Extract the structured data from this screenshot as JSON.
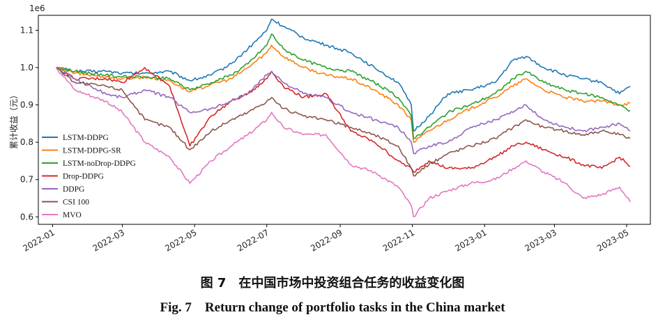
{
  "chart_data": {
    "type": "line",
    "offset_label": "1e6",
    "ylabel": "累计收益（元）",
    "xlabel": "",
    "x_ticks": [
      "2022-01",
      "2022-03",
      "2022-05",
      "2022-07",
      "2022-09",
      "2022-11",
      "2023-01",
      "2023-03",
      "2023-05"
    ],
    "y_ticks": [
      "0.6",
      "0.7",
      "0.8",
      "0.9",
      "1.0",
      "1.1"
    ],
    "ylim": [
      0.58,
      1.14
    ],
    "xlim": [
      "2021-12-20",
      "2023-05-21"
    ],
    "legend_position": "center-left",
    "grid": false,
    "series": [
      {
        "name": "LSTM-DDPG",
        "color": "#1f77b4",
        "points": [
          [
            "2022-01-04",
            1.0
          ],
          [
            "2022-01-20",
            0.99
          ],
          [
            "2022-02-15",
            0.99
          ],
          [
            "2022-03-01",
            0.985
          ],
          [
            "2022-03-20",
            0.985
          ],
          [
            "2022-04-10",
            0.99
          ],
          [
            "2022-04-27",
            0.965
          ],
          [
            "2022-05-15",
            0.98
          ],
          [
            "2022-06-01",
            1.01
          ],
          [
            "2022-06-15",
            1.05
          ],
          [
            "2022-07-01",
            1.1
          ],
          [
            "2022-07-05",
            1.13
          ],
          [
            "2022-07-15",
            1.11
          ],
          [
            "2022-08-01",
            1.08
          ],
          [
            "2022-08-20",
            1.06
          ],
          [
            "2022-09-10",
            1.04
          ],
          [
            "2022-09-30",
            1.0
          ],
          [
            "2022-10-20",
            0.96
          ],
          [
            "2022-10-31",
            0.9
          ],
          [
            "2022-11-02",
            0.83
          ],
          [
            "2022-11-15",
            0.87
          ],
          [
            "2022-12-01",
            0.93
          ],
          [
            "2022-12-20",
            0.94
          ],
          [
            "2023-01-10",
            0.96
          ],
          [
            "2023-01-25",
            1.02
          ],
          [
            "2023-02-05",
            1.03
          ],
          [
            "2023-02-20",
            1.0
          ],
          [
            "2023-03-10",
            0.98
          ],
          [
            "2023-03-25",
            0.97
          ],
          [
            "2023-04-10",
            0.96
          ],
          [
            "2023-04-25",
            0.93
          ],
          [
            "2023-05-04",
            0.95
          ]
        ]
      },
      {
        "name": "LSTM-DDPG-SR",
        "color": "#ff7f0e",
        "points": [
          [
            "2022-01-04",
            1.0
          ],
          [
            "2022-01-20",
            0.985
          ],
          [
            "2022-02-15",
            0.975
          ],
          [
            "2022-03-01",
            0.97
          ],
          [
            "2022-03-20",
            0.975
          ],
          [
            "2022-04-10",
            0.965
          ],
          [
            "2022-04-27",
            0.935
          ],
          [
            "2022-05-15",
            0.955
          ],
          [
            "2022-06-01",
            0.97
          ],
          [
            "2022-06-15",
            1.0
          ],
          [
            "2022-07-01",
            1.04
          ],
          [
            "2022-07-05",
            1.06
          ],
          [
            "2022-07-15",
            1.03
          ],
          [
            "2022-08-01",
            1.0
          ],
          [
            "2022-08-20",
            0.98
          ],
          [
            "2022-09-10",
            0.97
          ],
          [
            "2022-09-30",
            0.94
          ],
          [
            "2022-10-20",
            0.9
          ],
          [
            "2022-10-31",
            0.86
          ],
          [
            "2022-11-02",
            0.8
          ],
          [
            "2022-11-15",
            0.83
          ],
          [
            "2022-12-01",
            0.86
          ],
          [
            "2022-12-20",
            0.89
          ],
          [
            "2023-01-10",
            0.92
          ],
          [
            "2023-01-25",
            0.95
          ],
          [
            "2023-02-05",
            0.97
          ],
          [
            "2023-02-20",
            0.94
          ],
          [
            "2023-03-10",
            0.92
          ],
          [
            "2023-03-25",
            0.91
          ],
          [
            "2023-04-10",
            0.91
          ],
          [
            "2023-04-25",
            0.9
          ],
          [
            "2023-05-04",
            0.905
          ]
        ]
      },
      {
        "name": "LSTM-noDrop-DDPG",
        "color": "#2ca02c",
        "points": [
          [
            "2022-01-04",
            1.0
          ],
          [
            "2022-01-20",
            0.99
          ],
          [
            "2022-02-15",
            0.98
          ],
          [
            "2022-03-01",
            0.975
          ],
          [
            "2022-03-20",
            0.975
          ],
          [
            "2022-04-10",
            0.97
          ],
          [
            "2022-04-27",
            0.94
          ],
          [
            "2022-05-15",
            0.96
          ],
          [
            "2022-06-01",
            0.98
          ],
          [
            "2022-06-15",
            1.01
          ],
          [
            "2022-07-01",
            1.06
          ],
          [
            "2022-07-05",
            1.09
          ],
          [
            "2022-07-15",
            1.05
          ],
          [
            "2022-08-01",
            1.02
          ],
          [
            "2022-08-20",
            1.0
          ],
          [
            "2022-09-10",
            0.99
          ],
          [
            "2022-09-30",
            0.96
          ],
          [
            "2022-10-20",
            0.92
          ],
          [
            "2022-10-31",
            0.87
          ],
          [
            "2022-11-02",
            0.81
          ],
          [
            "2022-11-15",
            0.84
          ],
          [
            "2022-12-01",
            0.88
          ],
          [
            "2022-12-20",
            0.9
          ],
          [
            "2023-01-10",
            0.93
          ],
          [
            "2023-01-25",
            0.97
          ],
          [
            "2023-02-05",
            0.99
          ],
          [
            "2023-02-20",
            0.96
          ],
          [
            "2023-03-10",
            0.94
          ],
          [
            "2023-03-25",
            0.93
          ],
          [
            "2023-04-10",
            0.92
          ],
          [
            "2023-04-25",
            0.9
          ],
          [
            "2023-05-04",
            0.885
          ]
        ]
      },
      {
        "name": "Drop-DDPG",
        "color": "#d62728",
        "points": [
          [
            "2022-01-04",
            1.0
          ],
          [
            "2022-01-20",
            0.97
          ],
          [
            "2022-02-15",
            0.97
          ],
          [
            "2022-03-01",
            0.96
          ],
          [
            "2022-03-20",
            1.0
          ],
          [
            "2022-04-10",
            0.95
          ],
          [
            "2022-04-27",
            0.79
          ],
          [
            "2022-05-15",
            0.87
          ],
          [
            "2022-06-01",
            0.91
          ],
          [
            "2022-06-15",
            0.93
          ],
          [
            "2022-07-01",
            0.97
          ],
          [
            "2022-07-05",
            0.99
          ],
          [
            "2022-07-15",
            0.95
          ],
          [
            "2022-08-01",
            0.92
          ],
          [
            "2022-08-20",
            0.93
          ],
          [
            "2022-09-10",
            0.83
          ],
          [
            "2022-09-30",
            0.8
          ],
          [
            "2022-10-20",
            0.75
          ],
          [
            "2022-10-31",
            0.73
          ],
          [
            "2022-11-02",
            0.72
          ],
          [
            "2022-11-15",
            0.75
          ],
          [
            "2022-12-01",
            0.73
          ],
          [
            "2022-12-20",
            0.73
          ],
          [
            "2023-01-10",
            0.76
          ],
          [
            "2023-01-25",
            0.79
          ],
          [
            "2023-02-05",
            0.8
          ],
          [
            "2023-02-20",
            0.78
          ],
          [
            "2023-03-10",
            0.76
          ],
          [
            "2023-03-25",
            0.74
          ],
          [
            "2023-04-10",
            0.73
          ],
          [
            "2023-04-25",
            0.76
          ],
          [
            "2023-05-04",
            0.735
          ]
        ]
      },
      {
        "name": "DDPG",
        "color": "#9467bd",
        "points": [
          [
            "2022-01-04",
            1.0
          ],
          [
            "2022-01-20",
            0.97
          ],
          [
            "2022-02-15",
            0.93
          ],
          [
            "2022-03-01",
            0.92
          ],
          [
            "2022-03-20",
            0.94
          ],
          [
            "2022-04-10",
            0.92
          ],
          [
            "2022-04-27",
            0.88
          ],
          [
            "2022-05-15",
            0.89
          ],
          [
            "2022-06-01",
            0.91
          ],
          [
            "2022-06-15",
            0.93
          ],
          [
            "2022-07-01",
            0.98
          ],
          [
            "2022-07-05",
            0.99
          ],
          [
            "2022-07-15",
            0.96
          ],
          [
            "2022-08-01",
            0.93
          ],
          [
            "2022-08-20",
            0.92
          ],
          [
            "2022-09-10",
            0.88
          ],
          [
            "2022-09-30",
            0.86
          ],
          [
            "2022-10-20",
            0.84
          ],
          [
            "2022-10-31",
            0.8
          ],
          [
            "2022-11-02",
            0.77
          ],
          [
            "2022-11-15",
            0.79
          ],
          [
            "2022-12-01",
            0.8
          ],
          [
            "2022-12-20",
            0.84
          ],
          [
            "2023-01-10",
            0.86
          ],
          [
            "2023-01-25",
            0.88
          ],
          [
            "2023-02-05",
            0.9
          ],
          [
            "2023-02-20",
            0.86
          ],
          [
            "2023-03-10",
            0.84
          ],
          [
            "2023-03-25",
            0.83
          ],
          [
            "2023-04-10",
            0.84
          ],
          [
            "2023-04-25",
            0.85
          ],
          [
            "2023-05-04",
            0.83
          ]
        ]
      },
      {
        "name": "CSI 100",
        "color": "#8c564b",
        "points": [
          [
            "2022-01-04",
            1.0
          ],
          [
            "2022-01-20",
            0.96
          ],
          [
            "2022-02-15",
            0.95
          ],
          [
            "2022-03-01",
            0.94
          ],
          [
            "2022-03-20",
            0.86
          ],
          [
            "2022-04-10",
            0.84
          ],
          [
            "2022-04-27",
            0.78
          ],
          [
            "2022-05-15",
            0.83
          ],
          [
            "2022-06-01",
            0.86
          ],
          [
            "2022-06-15",
            0.88
          ],
          [
            "2022-07-01",
            0.91
          ],
          [
            "2022-07-05",
            0.92
          ],
          [
            "2022-07-15",
            0.89
          ],
          [
            "2022-08-01",
            0.87
          ],
          [
            "2022-08-20",
            0.86
          ],
          [
            "2022-09-10",
            0.84
          ],
          [
            "2022-09-30",
            0.82
          ],
          [
            "2022-10-20",
            0.79
          ],
          [
            "2022-10-31",
            0.73
          ],
          [
            "2022-11-02",
            0.71
          ],
          [
            "2022-11-15",
            0.74
          ],
          [
            "2022-12-01",
            0.77
          ],
          [
            "2022-12-20",
            0.79
          ],
          [
            "2023-01-10",
            0.81
          ],
          [
            "2023-01-25",
            0.84
          ],
          [
            "2023-02-05",
            0.86
          ],
          [
            "2023-02-20",
            0.84
          ],
          [
            "2023-03-10",
            0.83
          ],
          [
            "2023-03-25",
            0.82
          ],
          [
            "2023-04-10",
            0.83
          ],
          [
            "2023-04-25",
            0.82
          ],
          [
            "2023-05-04",
            0.81
          ]
        ]
      },
      {
        "name": "MVO",
        "color": "#e377c2",
        "points": [
          [
            "2022-01-04",
            1.0
          ],
          [
            "2022-01-20",
            0.94
          ],
          [
            "2022-02-15",
            0.91
          ],
          [
            "2022-03-01",
            0.88
          ],
          [
            "2022-03-20",
            0.8
          ],
          [
            "2022-04-10",
            0.76
          ],
          [
            "2022-04-27",
            0.69
          ],
          [
            "2022-05-15",
            0.75
          ],
          [
            "2022-06-01",
            0.79
          ],
          [
            "2022-06-15",
            0.82
          ],
          [
            "2022-07-01",
            0.86
          ],
          [
            "2022-07-05",
            0.88
          ],
          [
            "2022-07-15",
            0.84
          ],
          [
            "2022-08-01",
            0.82
          ],
          [
            "2022-08-20",
            0.82
          ],
          [
            "2022-09-10",
            0.74
          ],
          [
            "2022-09-30",
            0.72
          ],
          [
            "2022-10-20",
            0.68
          ],
          [
            "2022-10-31",
            0.63
          ],
          [
            "2022-11-02",
            0.6
          ],
          [
            "2022-11-15",
            0.65
          ],
          [
            "2022-12-01",
            0.67
          ],
          [
            "2022-12-20",
            0.69
          ],
          [
            "2023-01-10",
            0.7
          ],
          [
            "2023-01-25",
            0.73
          ],
          [
            "2023-02-05",
            0.75
          ],
          [
            "2023-02-20",
            0.72
          ],
          [
            "2023-03-10",
            0.69
          ],
          [
            "2023-03-25",
            0.65
          ],
          [
            "2023-04-10",
            0.66
          ],
          [
            "2023-04-25",
            0.68
          ],
          [
            "2023-05-04",
            0.64
          ]
        ]
      }
    ]
  },
  "caption": {
    "zh": "图 7　在中国市场中投资组合任务的收益变化图",
    "en": "Fig. 7　Return change of portfolio tasks in the China market"
  }
}
